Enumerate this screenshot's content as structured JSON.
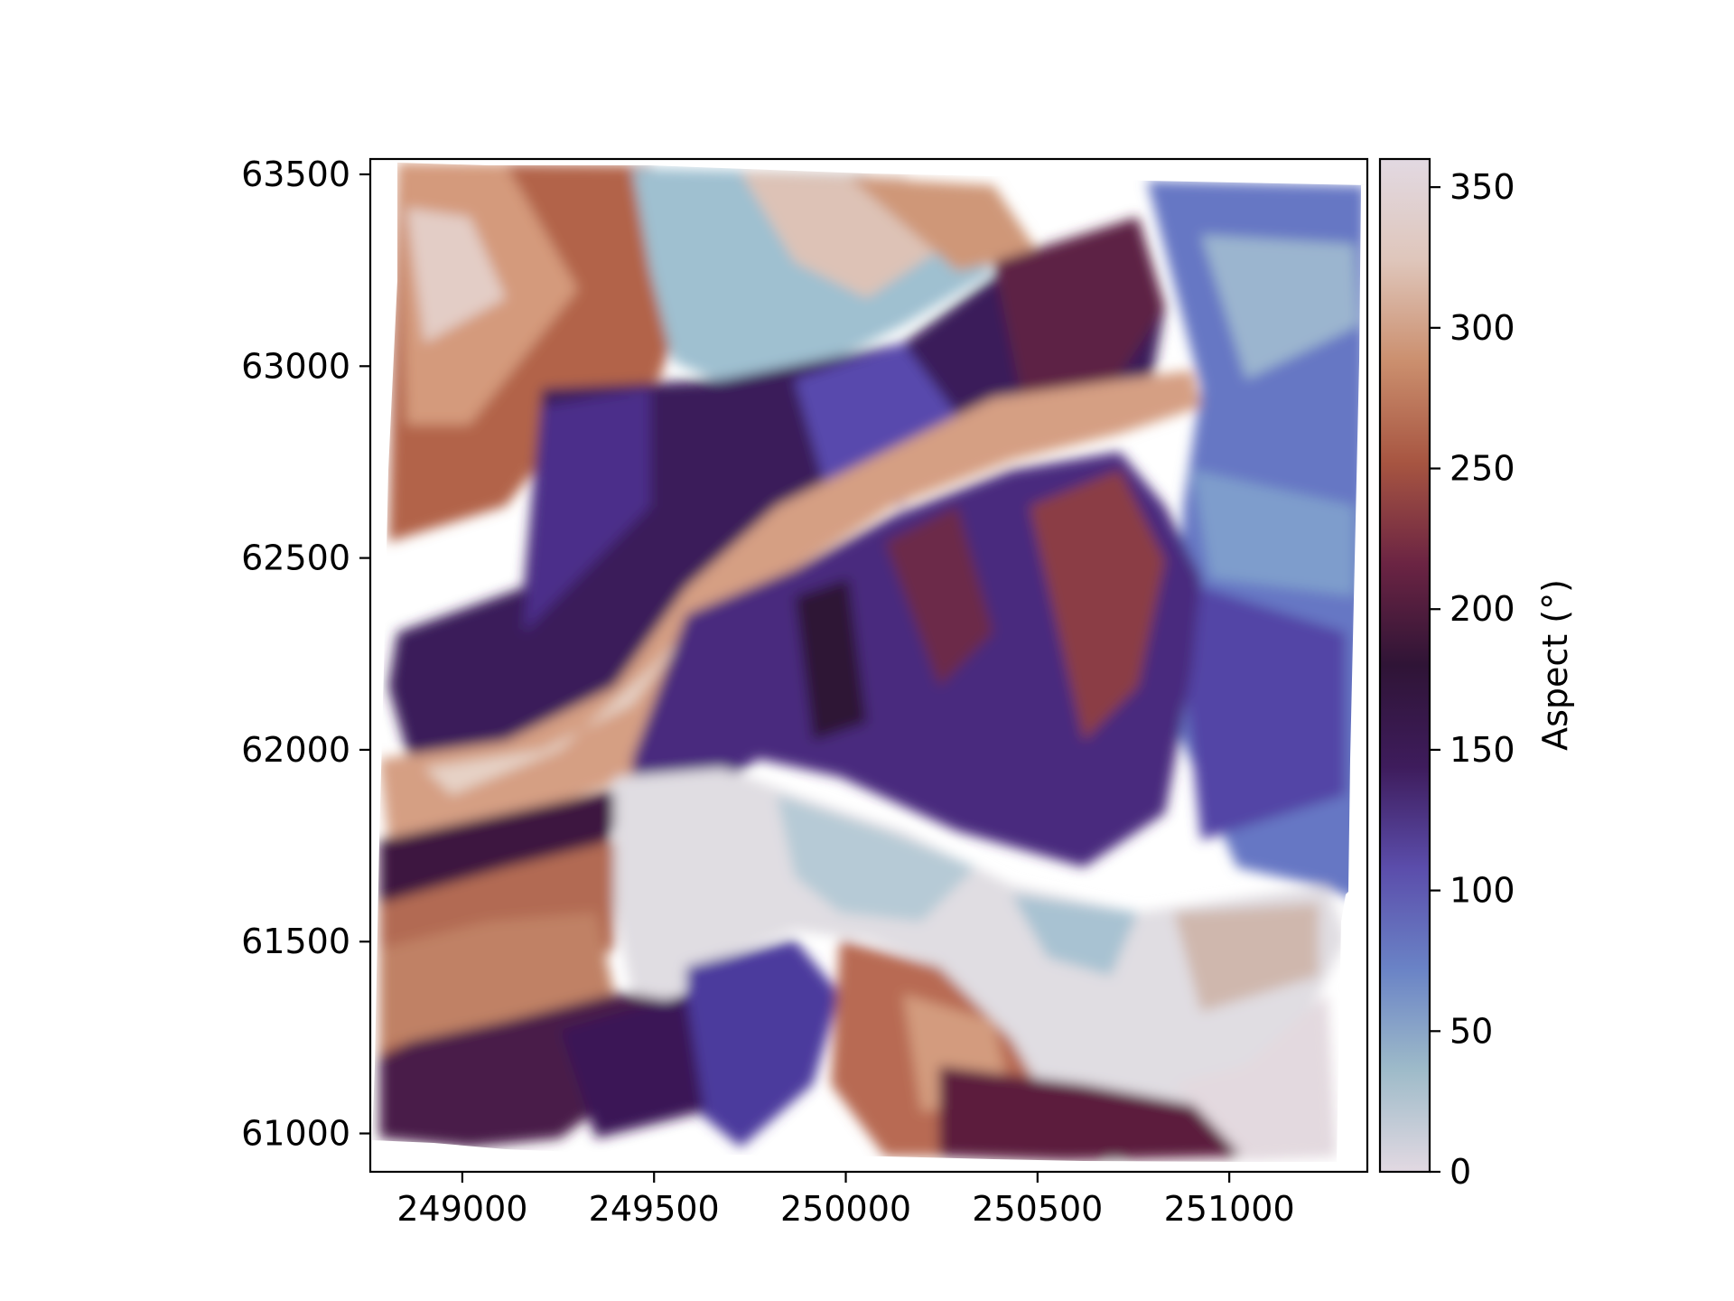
{
  "chart_data": {
    "type": "heatmap",
    "title": "",
    "xlabel": "",
    "ylabel": "",
    "xlim": [
      248760,
      251360
    ],
    "ylim": [
      60900,
      63540
    ],
    "x_ticks": [
      {
        "value": 249000,
        "label": "249000"
      },
      {
        "value": 249500,
        "label": "249500"
      },
      {
        "value": 250000,
        "label": "250000"
      },
      {
        "value": 250500,
        "label": "250500"
      },
      {
        "value": 251000,
        "label": "251000"
      }
    ],
    "y_ticks": [
      {
        "value": 61000,
        "label": "61000"
      },
      {
        "value": 61500,
        "label": "61500"
      },
      {
        "value": 62000,
        "label": "62000"
      },
      {
        "value": 62500,
        "label": "62500"
      },
      {
        "value": 63000,
        "label": "63000"
      },
      {
        "value": 63500,
        "label": "63500"
      }
    ],
    "grid": false,
    "colorbar": {
      "label": "Aspect (°)",
      "colormap": "twilight",
      "range": [
        0,
        360
      ],
      "ticks": [
        {
          "value": 0,
          "label": "0"
        },
        {
          "value": 50,
          "label": "50"
        },
        {
          "value": 100,
          "label": "100"
        },
        {
          "value": 150,
          "label": "150"
        },
        {
          "value": 200,
          "label": "200"
        },
        {
          "value": 250,
          "label": "250"
        },
        {
          "value": 300,
          "label": "300"
        },
        {
          "value": 350,
          "label": "350"
        }
      ],
      "stops": [
        "#e2d9e2",
        "#9ebbc9",
        "#6a83c6",
        "#5b4dab",
        "#3e1c5c",
        "#2f1436",
        "#6b2443",
        "#a75541",
        "#cb8f6e",
        "#dfc6bb",
        "#e2d9e2"
      ]
    }
  }
}
